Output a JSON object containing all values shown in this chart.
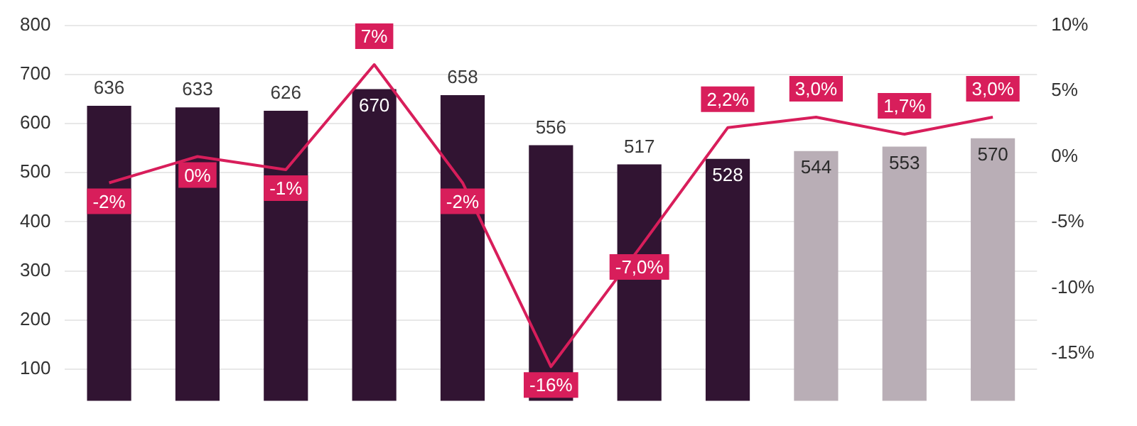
{
  "chart_data": {
    "type": "bar",
    "categories": [
      null,
      null,
      null,
      null,
      null,
      null,
      null,
      null,
      null,
      null,
      null
    ],
    "series": [
      {
        "type": "bar",
        "colors": [
          "#311432",
          "#311432",
          "#311432",
          "#311432",
          "#311432",
          "#311432",
          "#311432",
          "#311432",
          "#b9aeb6",
          "#b9aeb6",
          "#b9aeb6"
        ],
        "values": [
          636,
          633,
          626,
          670,
          658,
          556,
          517,
          528,
          544,
          553,
          570
        ],
        "value_labels": [
          "636",
          "633",
          "626",
          "670",
          "658",
          "556",
          "517",
          "528",
          "544",
          "553",
          "570"
        ]
      },
      {
        "type": "line",
        "axis": "y2",
        "color": "#d81e5b",
        "values": [
          -2,
          0,
          -1,
          7,
          -2,
          -16,
          -7.0,
          2.2,
          3.0,
          1.7,
          3.0
        ],
        "value_labels": [
          "-2%",
          "0%",
          "-1%",
          "7%",
          "-2%",
          "-16%",
          "-7,0%",
          "2,2%",
          "3,0%",
          "1,7%",
          "3,0%"
        ]
      }
    ],
    "ylim": [
      36,
      800
    ],
    "yticks": [
      100,
      200,
      300,
      400,
      500,
      600,
      700,
      800
    ],
    "y2lim": [
      -18.6,
      10
    ],
    "y2ticks": [
      {
        "value": -15,
        "label": "-15%"
      },
      {
        "value": -10,
        "label": "-10%"
      },
      {
        "value": -5,
        "label": "-5%"
      },
      {
        "value": 0,
        "label": "0%"
      },
      {
        "value": 5,
        "label": "5%"
      },
      {
        "value": 10,
        "label": "10%"
      }
    ],
    "grid": "y",
    "marker": "none"
  }
}
